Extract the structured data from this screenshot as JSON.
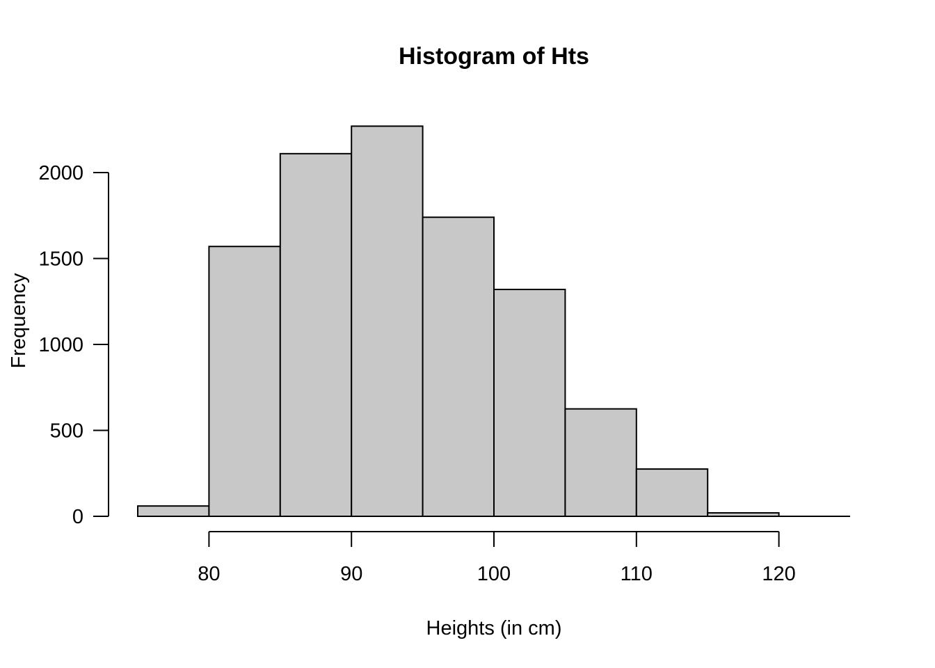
{
  "chart_data": {
    "type": "bar",
    "title": "Histogram of Hts",
    "xlabel": "Heights (in cm)",
    "ylabel": "Frequency",
    "bins": [
      {
        "start": 75,
        "end": 80,
        "count": 60
      },
      {
        "start": 80,
        "end": 85,
        "count": 1570
      },
      {
        "start": 85,
        "end": 90,
        "count": 2110
      },
      {
        "start": 90,
        "end": 95,
        "count": 2270
      },
      {
        "start": 95,
        "end": 100,
        "count": 1740
      },
      {
        "start": 100,
        "end": 105,
        "count": 1320
      },
      {
        "start": 105,
        "end": 110,
        "count": 625
      },
      {
        "start": 110,
        "end": 115,
        "count": 275
      },
      {
        "start": 115,
        "end": 120,
        "count": 20
      },
      {
        "start": 120,
        "end": 125,
        "count": 0
      }
    ],
    "x_ticks": [
      80,
      90,
      100,
      110,
      120
    ],
    "x_tick_labels": [
      "80",
      "90",
      "100",
      "110",
      "120"
    ],
    "y_ticks": [
      0,
      500,
      1000,
      1500,
      2000
    ],
    "y_tick_labels": [
      "0",
      "500",
      "1000",
      "1500",
      "2000"
    ],
    "xlim": [
      75,
      125
    ],
    "ylim": [
      0,
      2270
    ],
    "bar_fill": "#c8c8c8",
    "grid": false,
    "legend": "none"
  }
}
